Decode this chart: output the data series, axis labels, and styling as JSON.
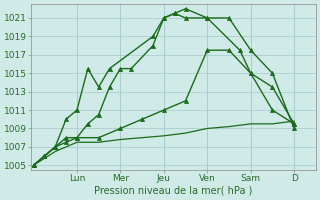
{
  "title": "",
  "xlabel": "Pression niveau de la mer( hPa )",
  "ylabel": "",
  "bg_color": "#d0eae8",
  "grid_color": "#aacece",
  "line_color": "#1a6b1a",
  "ylim": [
    1004.5,
    1022.5
  ],
  "yticks": [
    1005,
    1007,
    1009,
    1011,
    1013,
    1015,
    1017,
    1019,
    1021
  ],
  "day_labels": [
    "Lun",
    "Mer",
    "Jeu",
    "Ven",
    "Sam",
    "D"
  ],
  "day_positions": [
    2.0,
    4.0,
    6.0,
    8.0,
    10.0,
    12.0
  ],
  "xlim": [
    -0.1,
    13.0
  ],
  "series": [
    {
      "x": [
        0,
        0.5,
        1.0,
        1.5,
        2.0,
        2.5,
        3.0,
        3.5,
        5.5,
        6.0,
        6.5,
        7.0,
        8.0,
        9.0,
        10.0,
        11.0,
        12.0
      ],
      "y": [
        1005,
        1006,
        1007,
        1010,
        1011,
        1015.5,
        1013.5,
        1015.5,
        1019,
        1021,
        1021.5,
        1022,
        1021,
        1021,
        1017.5,
        1015,
        1009
      ],
      "marker": "^",
      "markersize": 3,
      "linewidth": 1.0,
      "color": "#1a6b1a"
    },
    {
      "x": [
        0,
        0.5,
        1.0,
        1.5,
        2.0,
        2.5,
        3.0,
        3.5,
        4.0,
        4.5,
        5.5,
        6.0,
        6.5,
        7.0,
        8.0,
        9.5,
        10.0,
        11.0,
        12.0
      ],
      "y": [
        1005,
        1006,
        1007,
        1008,
        1008,
        1009.5,
        1010.5,
        1013.5,
        1015.5,
        1015.5,
        1018,
        1021,
        1021.5,
        1021,
        1021,
        1017.5,
        1015,
        1011,
        1009.5
      ],
      "marker": "^",
      "markersize": 3,
      "linewidth": 1.0,
      "color": "#1a6b1a"
    },
    {
      "x": [
        0,
        0.5,
        1.0,
        1.5,
        2.0,
        3.0,
        4.0,
        5.0,
        6.0,
        7.0,
        8.0,
        9.0,
        10.0,
        11.0,
        12.0
      ],
      "y": [
        1005,
        1006,
        1007,
        1007.5,
        1008,
        1008,
        1009,
        1010,
        1011,
        1012,
        1017.5,
        1017.5,
        1015,
        1013.5,
        1009.5
      ],
      "marker": "^",
      "markersize": 3,
      "linewidth": 1.0,
      "color": "#1a6b1a"
    },
    {
      "x": [
        0,
        1.0,
        2.0,
        3.0,
        4.0,
        5.0,
        6.0,
        7.0,
        8.0,
        9.0,
        10.0,
        11.0,
        12.0
      ],
      "y": [
        1005,
        1006.5,
        1007.5,
        1007.5,
        1007.8,
        1008,
        1008.2,
        1008.5,
        1009,
        1009.2,
        1009.5,
        1009.5,
        1009.8
      ],
      "marker": null,
      "markersize": 0,
      "linewidth": 0.9,
      "color": "#1a6b1a"
    }
  ]
}
